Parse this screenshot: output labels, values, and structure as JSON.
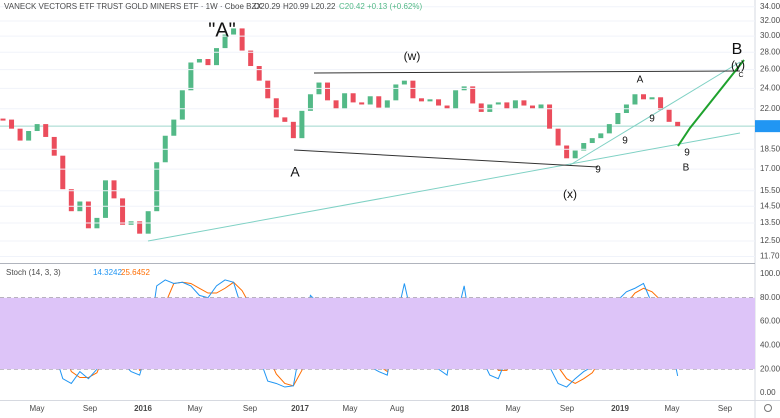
{
  "header": {
    "symbol": "VANECK VECTORS ETF TRUST GOLD MINERS ETF · 1W · Cboe BZX",
    "open": "O20.29",
    "high": "H20.99",
    "low": "L20.22",
    "close": "C20.42",
    "change": "+0.13 (+0.62%)"
  },
  "x_tick_labels": [
    "May",
    "Sep",
    "2016",
    "May",
    "Sep",
    "2017",
    "May",
    "Aug",
    "2018",
    "May",
    "Sep",
    "2019",
    "May",
    "Sep"
  ],
  "annotations": [
    "\"A\"",
    "(w)",
    "A",
    "(x)",
    "A",
    "B",
    "(y)",
    "C",
    "9",
    "9",
    "9",
    "9",
    "B"
  ],
  "chart_data": [
    {
      "type": "candlestick",
      "log_scale": true,
      "grid": true,
      "up_color": "#53b987",
      "down_color": "#eb4d5c",
      "ylim": [
        11.43,
        35.0
      ],
      "yticks": [
        {
          "value": 34,
          "label": "34.00"
        },
        {
          "value": 32,
          "label": "32.00"
        },
        {
          "value": 30,
          "label": "30.00"
        },
        {
          "value": 28,
          "label": "28.00"
        },
        {
          "value": 26,
          "label": "26.00"
        },
        {
          "value": 24,
          "label": "24.00"
        },
        {
          "value": 22,
          "label": "22.00"
        },
        {
          "value": 18.5,
          "label": "18.50"
        },
        {
          "value": 17,
          "label": "17.00"
        },
        {
          "value": 15.5,
          "label": "15.50"
        },
        {
          "value": 14.5,
          "label": "14.50"
        },
        {
          "value": 13.5,
          "label": "13.50"
        },
        {
          "value": 12.5,
          "label": "12.50"
        },
        {
          "value": 11.7,
          "label": "11.70"
        }
      ],
      "last_price": 20.42,
      "last_price_color": "#2196f3",
      "closes": [
        21.0,
        20.2,
        19.2,
        20.0,
        20.6,
        19.5,
        18.0,
        15.6,
        14.2,
        14.8,
        13.2,
        13.8,
        16.2,
        15.0,
        13.4,
        13.6,
        12.9,
        14.2,
        17.5,
        19.6,
        21.0,
        23.8,
        26.8,
        27.2,
        26.5,
        28.5,
        30.2,
        31.0,
        28.2,
        26.4,
        24.8,
        23.0,
        21.2,
        20.8,
        19.4,
        21.8,
        23.4,
        24.6,
        22.8,
        22.0,
        23.5,
        22.6,
        22.4,
        23.2,
        22.1,
        22.8,
        24.4,
        24.8,
        23.0,
        22.7,
        22.9,
        22.3,
        22.0,
        23.8,
        24.2,
        22.5,
        21.7,
        22.4,
        22.6,
        22.0,
        22.8,
        22.3,
        22.0,
        22.4,
        20.2,
        18.8,
        17.8,
        18.4,
        19.0,
        19.4,
        19.8,
        20.6,
        21.6,
        22.4,
        23.4,
        22.9,
        23.1,
        21.9,
        20.8,
        20.42
      ]
    },
    {
      "type": "line",
      "title": "Stoch (14, 3, 3)",
      "ylim": [
        -5.9,
        106.7
      ],
      "band": [
        20,
        80
      ],
      "band_color": "#ddc4f8",
      "yticks": [
        {
          "value": 100,
          "label": "100.00"
        },
        {
          "value": 80,
          "label": "80.00"
        },
        {
          "value": 60,
          "label": "60.00"
        },
        {
          "value": 40,
          "label": "40.00"
        },
        {
          "value": 20,
          "label": "20.00"
        },
        {
          "value": 0,
          "label": "0.00"
        }
      ],
      "series": [
        {
          "color": "#2196f3",
          "values": [
            62,
            40,
            22,
            30,
            55,
            62,
            35,
            12,
            8,
            18,
            12,
            20,
            70,
            75,
            25,
            18,
            15,
            40,
            90,
            95,
            92,
            93,
            90,
            82,
            80,
            90,
            95,
            93,
            70,
            55,
            30,
            10,
            8,
            5,
            6,
            45,
            82,
            75,
            55,
            58,
            60,
            45,
            30,
            22,
            18,
            15,
            60,
            92,
            60,
            40,
            30,
            20,
            15,
            60,
            90,
            45,
            30,
            15,
            12,
            30,
            50,
            55,
            48,
            35,
            22,
            8,
            5,
            12,
            18,
            22,
            45,
            62,
            78,
            85,
            88,
            92,
            75,
            68,
            50,
            14.3242
          ]
        },
        {
          "color": "#ff6d00",
          "values": [
            60,
            50,
            41,
            31,
            36,
            49,
            51,
            36,
            18,
            13,
            13,
            17,
            34,
            55,
            57,
            39,
            19,
            24,
            48,
            75,
            92,
            93,
            92,
            88,
            84,
            84,
            88,
            93,
            86,
            73,
            52,
            32,
            16,
            8,
            6,
            19,
            44,
            67,
            71,
            63,
            58,
            54,
            45,
            32,
            23,
            18,
            31,
            56,
            71,
            64,
            43,
            30,
            22,
            32,
            55,
            65,
            55,
            30,
            19,
            19,
            31,
            45,
            51,
            46,
            35,
            22,
            12,
            8,
            12,
            17,
            28,
            43,
            62,
            75,
            84,
            88,
            85,
            78,
            64,
            25.6452
          ]
        }
      ]
    }
  ]
}
